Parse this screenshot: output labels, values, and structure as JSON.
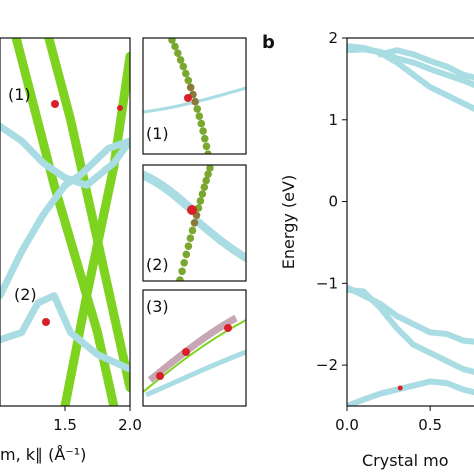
{
  "colors": {
    "green_band": "#7ed321",
    "cyan_band": "#a9dde3",
    "red_crossing": "#d9202a",
    "frame": "#111111"
  },
  "chart_data": [
    {
      "type": "line",
      "panel": "a",
      "xlabel": "m, k∥ (Å⁻¹)",
      "x_ticks": [
        "1.5",
        "2.0"
      ],
      "xlim": [
        0.8,
        2.0
      ],
      "ylim": [
        0,
        1
      ],
      "annotations": [
        "(1)",
        "(2)"
      ],
      "series": [
        {
          "color": "#7ed321",
          "points": [
            [
              0.95,
              1.0
            ],
            [
              1.3,
              0.6
            ],
            [
              1.7,
              0.2
            ],
            [
              1.85,
              0.0
            ]
          ]
        },
        {
          "color": "#7ed321",
          "points": [
            [
              1.25,
              1.0
            ],
            [
              1.45,
              0.78
            ],
            [
              1.7,
              0.45
            ],
            [
              2.0,
              0.05
            ]
          ]
        },
        {
          "color": "#7ed321",
          "points": [
            [
              1.4,
              0.0
            ],
            [
              1.6,
              0.3
            ],
            [
              1.85,
              0.65
            ],
            [
              2.0,
              0.95
            ]
          ]
        },
        {
          "color": "#a9dde3",
          "points": [
            [
              0.8,
              0.76
            ],
            [
              1.0,
              0.72
            ],
            [
              1.2,
              0.66
            ],
            [
              1.4,
              0.62
            ],
            [
              1.6,
              0.6
            ],
            [
              1.85,
              0.66
            ],
            [
              2.0,
              0.72
            ]
          ]
        },
        {
          "color": "#a9dde3",
          "points": [
            [
              0.8,
              0.3
            ],
            [
              1.0,
              0.42
            ],
            [
              1.2,
              0.52
            ],
            [
              1.4,
              0.6
            ],
            [
              1.55,
              0.63
            ],
            [
              1.8,
              0.7
            ],
            [
              2.0,
              0.72
            ]
          ]
        },
        {
          "color": "#a9dde3",
          "points": [
            [
              0.8,
              0.18
            ],
            [
              1.0,
              0.2
            ],
            [
              1.15,
              0.28
            ],
            [
              1.3,
              0.3
            ],
            [
              1.45,
              0.2
            ],
            [
              1.7,
              0.14
            ],
            [
              2.0,
              0.1
            ]
          ]
        }
      ]
    },
    {
      "type": "line",
      "panel": "insets",
      "annotations": [
        "(1)",
        "(2)",
        "(3)"
      ]
    },
    {
      "type": "line",
      "panel": "b",
      "panel_label": "b",
      "xlabel": "Crystal mo",
      "ylabel": "Energy (eV)",
      "xlim": [
        0.0,
        0.8
      ],
      "ylim": [
        -2.5,
        2.0
      ],
      "x_ticks": [
        "0.0",
        "0.5"
      ],
      "y_ticks": [
        "2",
        "1",
        "0",
        "−1",
        "−2"
      ],
      "series": [
        {
          "color": "#a9dde3",
          "points": [
            [
              0.0,
              1.9
            ],
            [
              0.1,
              1.88
            ],
            [
              0.2,
              1.82
            ],
            [
              0.3,
              1.7
            ],
            [
              0.4,
              1.55
            ],
            [
              0.5,
              1.4
            ],
            [
              0.6,
              1.3
            ],
            [
              0.7,
              1.2
            ],
            [
              0.8,
              1.1
            ]
          ]
        },
        {
          "color": "#a9dde3",
          "points": [
            [
              0.0,
              1.85
            ],
            [
              0.1,
              1.86
            ],
            [
              0.2,
              1.83
            ],
            [
              0.3,
              1.75
            ],
            [
              0.4,
              1.7
            ],
            [
              0.5,
              1.62
            ],
            [
              0.6,
              1.55
            ],
            [
              0.7,
              1.48
            ],
            [
              0.8,
              1.4
            ]
          ]
        },
        {
          "color": "#a9dde3",
          "points": [
            [
              0.2,
              1.8
            ],
            [
              0.3,
              1.85
            ],
            [
              0.4,
              1.8
            ],
            [
              0.5,
              1.72
            ],
            [
              0.6,
              1.65
            ],
            [
              0.7,
              1.55
            ],
            [
              0.8,
              1.5
            ]
          ]
        },
        {
          "color": "#a9dde3",
          "points": [
            [
              0.0,
              -1.08
            ],
            [
              0.1,
              -1.1
            ],
            [
              0.2,
              -1.3
            ],
            [
              0.3,
              -1.55
            ],
            [
              0.4,
              -1.75
            ],
            [
              0.5,
              -1.85
            ],
            [
              0.6,
              -1.95
            ],
            [
              0.7,
              -2.05
            ],
            [
              0.8,
              -2.1
            ]
          ]
        },
        {
          "color": "#a9dde3",
          "points": [
            [
              0.0,
              -1.05
            ],
            [
              0.1,
              -1.15
            ],
            [
              0.2,
              -1.25
            ],
            [
              0.3,
              -1.4
            ],
            [
              0.4,
              -1.5
            ],
            [
              0.5,
              -1.6
            ],
            [
              0.6,
              -1.62
            ],
            [
              0.7,
              -1.7
            ],
            [
              0.8,
              -1.72
            ]
          ]
        },
        {
          "color": "#a9dde3",
          "points": [
            [
              0.0,
              -2.5
            ],
            [
              0.1,
              -2.42
            ],
            [
              0.2,
              -2.35
            ],
            [
              0.3,
              -2.3
            ],
            [
              0.4,
              -2.25
            ],
            [
              0.5,
              -2.2
            ],
            [
              0.6,
              -2.22
            ],
            [
              0.7,
              -2.3
            ],
            [
              0.8,
              -2.35
            ]
          ]
        }
      ]
    }
  ]
}
